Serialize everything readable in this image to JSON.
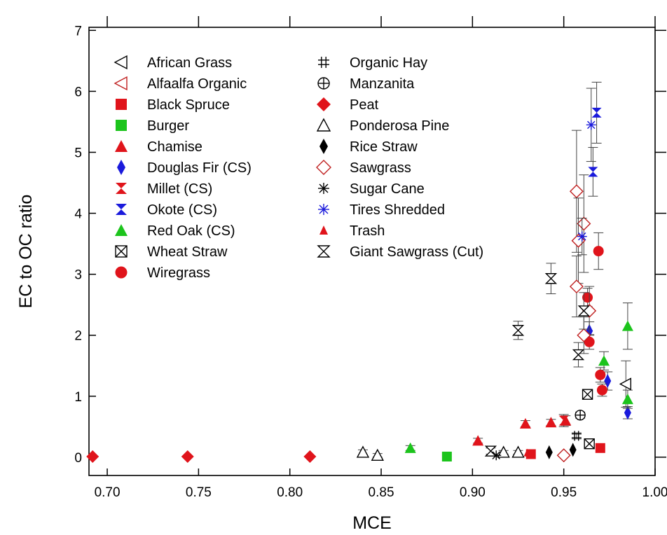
{
  "chart_data": {
    "type": "scatter",
    "xlabel": "MCE",
    "ylabel": "EC to OC ratio",
    "xlim": [
      0.69,
      1.0
    ],
    "ylim": [
      -0.3,
      7.05
    ],
    "x_ticks": [
      0.7,
      0.75,
      0.8,
      0.85,
      0.9,
      0.95,
      1.0
    ],
    "x_tick_labels": [
      "0.70",
      "0.75",
      "0.80",
      "0.85",
      "0.90",
      "0.95",
      "1.00"
    ],
    "y_ticks": [
      0,
      1,
      2,
      3,
      4,
      5,
      6,
      7
    ],
    "y_tick_labels": [
      "0",
      "1",
      "2",
      "3",
      "4",
      "5",
      "6",
      "7"
    ],
    "grid": false,
    "legend_position": "top-left",
    "colors": {
      "red": "#e0141b",
      "green": "#1cc41c",
      "blue": "#1a1adc",
      "darkred": "#c02020",
      "black": "#000000"
    },
    "series": [
      {
        "name": "African Grass",
        "marker": "triangle-left-open",
        "color": "#000000",
        "points": [
          [
            0.984,
            1.2,
            0.38
          ]
        ]
      },
      {
        "name": "Alfaalfa Organic",
        "marker": "triangle-left-open",
        "color": "#c02020",
        "points": []
      },
      {
        "name": "Black Spruce",
        "marker": "square",
        "color": "#e0141b",
        "points": [
          [
            0.97,
            0.15,
            0
          ],
          [
            0.932,
            0.05,
            0
          ]
        ]
      },
      {
        "name": "Burger",
        "marker": "square",
        "color": "#1cc41c",
        "points": [
          [
            0.886,
            0.01,
            0
          ]
        ]
      },
      {
        "name": "Chamise",
        "marker": "triangle-up",
        "color": "#e0141b",
        "points": [
          [
            0.903,
            0.27,
            0.04
          ],
          [
            0.929,
            0.55,
            0.05
          ],
          [
            0.943,
            0.57,
            0.05
          ],
          [
            0.951,
            0.6,
            0.08
          ]
        ]
      },
      {
        "name": "Douglas Fir (CS)",
        "marker": "diamond-thin",
        "color": "#1a1adc",
        "points": [
          [
            0.985,
            0.73,
            0.1
          ],
          [
            0.974,
            1.25,
            0.15
          ],
          [
            0.964,
            2.07,
            0.15
          ]
        ]
      },
      {
        "name": "Millet (CS)",
        "marker": "bowtie",
        "color": "#e0141b",
        "points": [
          [
            0.95,
            0.6,
            0.1
          ]
        ]
      },
      {
        "name": "Okote (CS)",
        "marker": "bowtie",
        "color": "#1a1adc",
        "points": [
          [
            0.968,
            5.65,
            0.5
          ],
          [
            0.966,
            4.68,
            0.4
          ]
        ]
      },
      {
        "name": "Red Oak (CS)",
        "marker": "triangle-up",
        "color": "#1cc41c",
        "points": [
          [
            0.866,
            0.15,
            0.04
          ],
          [
            0.985,
            2.15,
            0.38
          ],
          [
            0.985,
            0.95,
            0.15
          ],
          [
            0.972,
            1.58,
            0.15
          ]
        ]
      },
      {
        "name": "Wheat Straw",
        "marker": "square-x",
        "color": "#000000",
        "points": [
          [
            0.963,
            1.03,
            0
          ],
          [
            0.964,
            0.22,
            0
          ]
        ]
      },
      {
        "name": "Wiregrass",
        "marker": "circle",
        "color": "#e0141b",
        "points": [
          [
            0.969,
            3.38,
            0.3
          ],
          [
            0.963,
            2.62,
            0.15
          ],
          [
            0.964,
            1.89,
            0.12
          ],
          [
            0.97,
            1.35,
            0.12
          ],
          [
            0.971,
            1.1,
            0.1
          ]
        ]
      },
      {
        "name": "Organic Hay",
        "marker": "hash",
        "color": "#000000",
        "points": [
          [
            0.957,
            0.35,
            0.05
          ]
        ]
      },
      {
        "name": "Manzanita",
        "marker": "circle-plus",
        "color": "#000000",
        "points": [
          [
            0.959,
            0.69,
            0.05
          ]
        ]
      },
      {
        "name": "Peat",
        "marker": "diamond",
        "color": "#e0141b",
        "points": [
          [
            0.692,
            0.01,
            0
          ],
          [
            0.744,
            0.01,
            0
          ],
          [
            0.811,
            0.01,
            0
          ]
        ]
      },
      {
        "name": "Ponderosa Pine",
        "marker": "triangle-up-open",
        "color": "#000000",
        "points": [
          [
            0.84,
            0.08,
            0.04
          ],
          [
            0.848,
            0.03,
            0.03
          ],
          [
            0.917,
            0.08,
            0.03
          ],
          [
            0.925,
            0.08,
            0.03
          ]
        ]
      },
      {
        "name": "Rice Straw",
        "marker": "diamond-thin",
        "color": "#000000",
        "points": [
          [
            0.942,
            0.08,
            0
          ],
          [
            0.955,
            0.12,
            0
          ]
        ]
      },
      {
        "name": "Sawgrass",
        "marker": "diamond-open",
        "color": "#c02020",
        "points": [
          [
            0.957,
            4.36,
            1.0
          ],
          [
            0.961,
            3.83,
            0.8
          ],
          [
            0.958,
            3.55,
            0.7
          ],
          [
            0.957,
            2.8,
            0.5
          ],
          [
            0.964,
            2.4,
            0.4
          ],
          [
            0.961,
            2.0,
            0.3
          ],
          [
            0.95,
            0.03,
            0
          ]
        ]
      },
      {
        "name": "Sugar Cane",
        "marker": "asterisk",
        "color": "#000000",
        "points": [
          [
            0.913,
            0.03,
            0
          ]
        ]
      },
      {
        "name": "Tires Shredded",
        "marker": "asterisk",
        "color": "#1a1adc",
        "points": [
          [
            0.965,
            5.45,
            0.6
          ],
          [
            0.96,
            3.62,
            0.3
          ]
        ]
      },
      {
        "name": "Trash",
        "marker": "triangle-up-small",
        "color": "#e0141b",
        "points": [
          [
            0.93,
            0.07,
            0
          ]
        ]
      },
      {
        "name": "Giant Sawgrass (Cut)",
        "marker": "hourglass",
        "color": "#000000",
        "points": [
          [
            0.943,
            2.93,
            0.25
          ],
          [
            0.925,
            2.08,
            0.15
          ],
          [
            0.958,
            1.68,
            0.2
          ],
          [
            0.961,
            2.4,
            0.3
          ],
          [
            0.91,
            0.1,
            0.05
          ]
        ]
      }
    ]
  }
}
